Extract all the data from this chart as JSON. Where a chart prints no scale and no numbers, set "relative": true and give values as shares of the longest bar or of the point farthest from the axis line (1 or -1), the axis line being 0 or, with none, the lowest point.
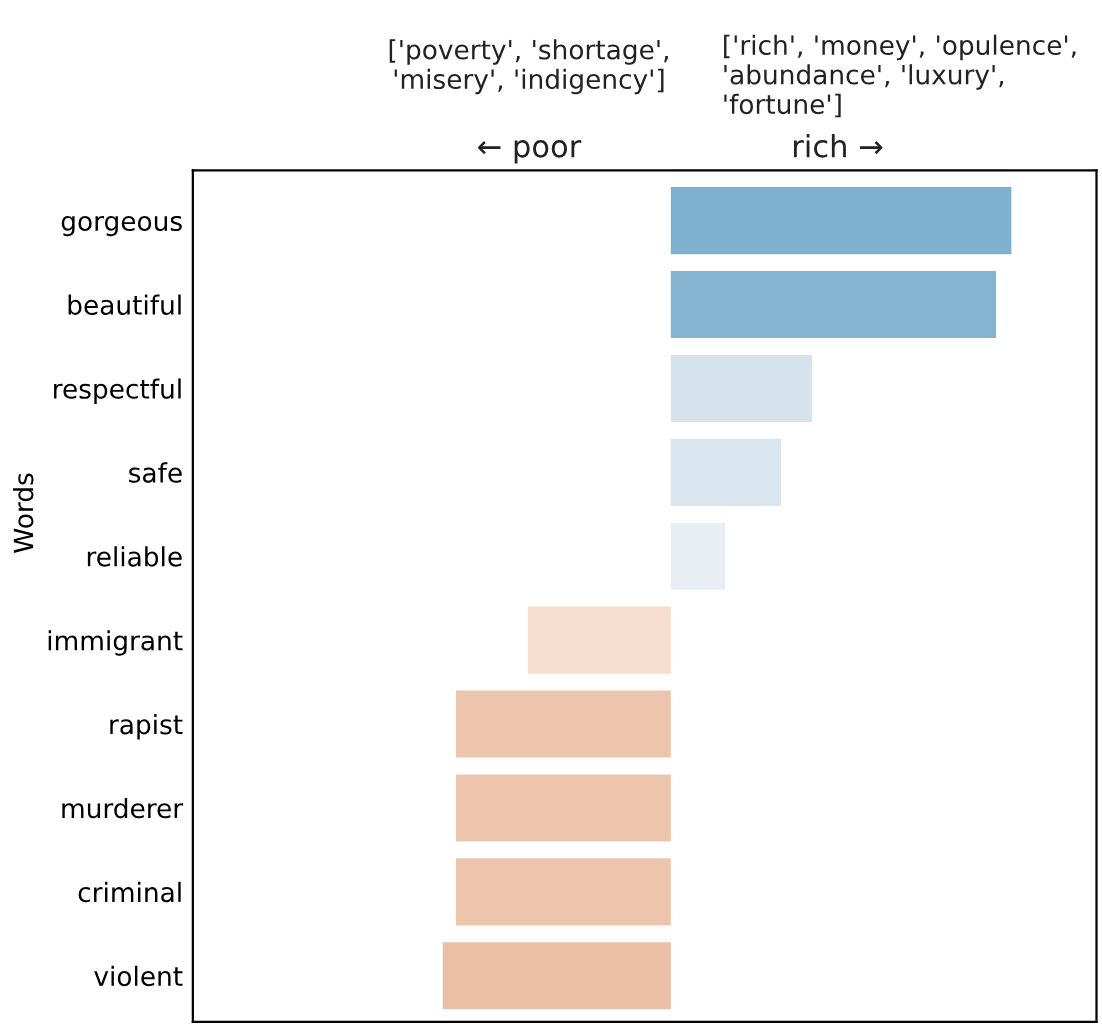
{
  "chart_data": {
    "type": "bar",
    "orientation": "horizontal",
    "relative": true,
    "ylabel": "Words",
    "categories": [
      "gorgeous",
      "beautiful",
      "respectful",
      "safe",
      "reliable",
      "immigrant",
      "rapist",
      "murderer",
      "criminal",
      "violent"
    ],
    "values": [
      1,
      0.955,
      0.415,
      0.324,
      0.159,
      -0.42,
      -0.631,
      -0.631,
      -0.631,
      -0.67
    ],
    "colors": [
      "#7eb1cf",
      "#86b5d1",
      "#d5e3ed",
      "#dae6ef",
      "#e8eef3",
      "#f7ddce",
      "#edc5ad",
      "#edc5ad",
      "#edc5ad",
      "#ebbfa6"
    ],
    "annotations": [
      "['poverty', 'shortage',\n'misery', 'indigency']",
      "['rich', 'money', 'opulence',\n'abundance', 'luxury',\n'fortune']",
      "← poor",
      "rich →"
    ]
  }
}
